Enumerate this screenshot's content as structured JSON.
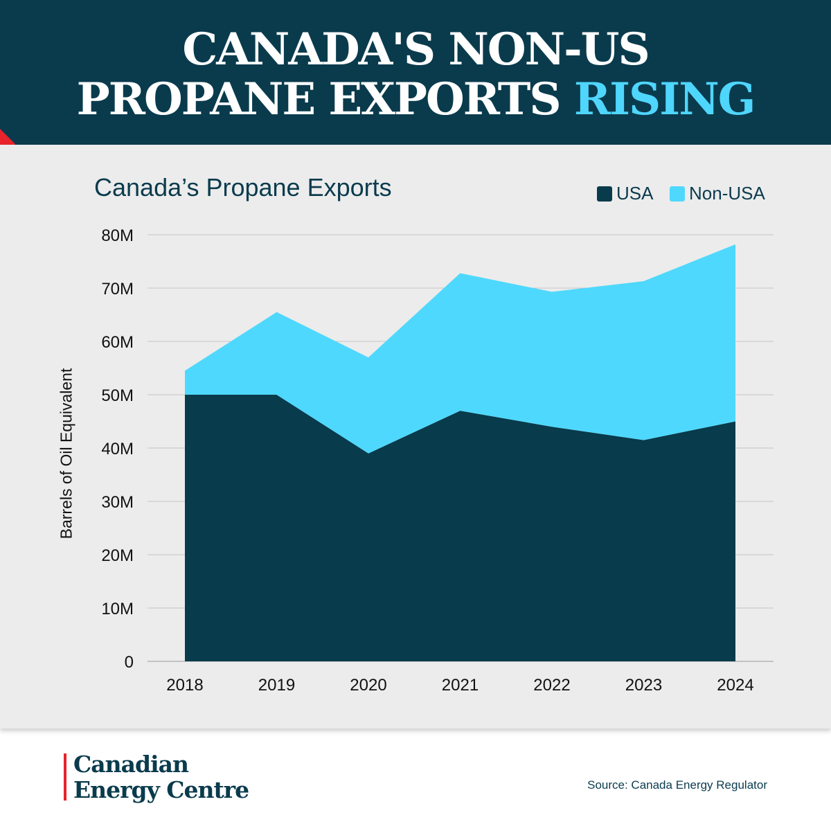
{
  "header": {
    "headline_line1": "CANADA'S NON-US",
    "headline_line2_main": "PROPANE EXPORTS",
    "headline_line2_accent": "RISING"
  },
  "footer": {
    "logo_line1": "Canadian",
    "logo_line2": "Energy Centre",
    "source": "Source: Canada Energy Regulator"
  },
  "colors": {
    "header_bg": "#0a3b4d",
    "usa": "#083b4c",
    "non_usa": "#4fd8fd",
    "accent_red": "#e8232b"
  },
  "chart_data": {
    "type": "area",
    "stacked": true,
    "title": "Canada’s Propane Exports",
    "ylabel": "Barrels of Oil Equivalent",
    "xlabel": "",
    "x": [
      "2018",
      "2019",
      "2020",
      "2021",
      "2022",
      "2023",
      "2024"
    ],
    "series": [
      {
        "name": "USA",
        "values": [
          50.0,
          50.0,
          39.0,
          47.0,
          44.0,
          41.5,
          45.0
        ]
      },
      {
        "name": "Non-USA",
        "values": [
          4.5,
          15.5,
          18.0,
          25.8,
          25.3,
          29.8,
          33.2
        ]
      }
    ],
    "ylim": [
      0,
      80
    ],
    "yticks": [
      0,
      10,
      20,
      30,
      40,
      50,
      60,
      70,
      80
    ],
    "ytick_labels": [
      "0",
      "10M",
      "20M",
      "30M",
      "40M",
      "50M",
      "60M",
      "70M",
      "80M"
    ],
    "grid": true,
    "legend_position": "top-right"
  }
}
